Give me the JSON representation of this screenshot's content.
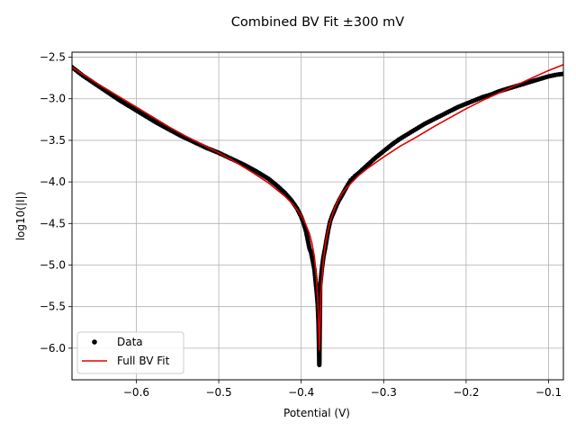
{
  "chart_data": {
    "type": "line",
    "title": "Combined BV Fit ±300 mV",
    "xlabel": "Potential (V)",
    "ylabel": "log10(|I|)",
    "xlim": [
      -0.678,
      -0.082
    ],
    "ylim": [
      -6.38,
      -2.44
    ],
    "xticks": [
      -0.6,
      -0.5,
      -0.4,
      -0.3,
      -0.2,
      -0.1
    ],
    "xtick_labels": [
      "−0.6",
      "−0.5",
      "−0.4",
      "−0.3",
      "−0.2",
      "−0.1"
    ],
    "yticks": [
      -2.5,
      -3.0,
      -3.5,
      -4.0,
      -4.5,
      -5.0,
      -5.5,
      -6.0
    ],
    "ytick_labels": [
      "−2.5",
      "−3.0",
      "−3.5",
      "−4.0",
      "−4.5",
      "−5.0",
      "−5.5",
      "−6.0"
    ],
    "grid": true,
    "legend_position": "lower-left",
    "series": [
      {
        "name": "Data",
        "style": "markers",
        "color": "#000000",
        "x": [
          -0.678,
          -0.665,
          -0.65,
          -0.635,
          -0.62,
          -0.605,
          -0.59,
          -0.575,
          -0.56,
          -0.545,
          -0.53,
          -0.515,
          -0.5,
          -0.485,
          -0.47,
          -0.455,
          -0.44,
          -0.43,
          -0.42,
          -0.412,
          -0.405,
          -0.4,
          -0.397,
          -0.394,
          -0.392,
          -0.39,
          -0.388,
          -0.386,
          -0.384,
          -0.383,
          -0.381,
          -0.38,
          -0.379,
          -0.378,
          -0.377,
          -0.375,
          -0.373,
          -0.371,
          -0.369,
          -0.367,
          -0.365,
          -0.363,
          -0.36,
          -0.357,
          -0.354,
          -0.35,
          -0.345,
          -0.34,
          -0.335,
          -0.33,
          -0.32,
          -0.31,
          -0.3,
          -0.29,
          -0.28,
          -0.27,
          -0.26,
          -0.25,
          -0.24,
          -0.23,
          -0.22,
          -0.21,
          -0.2,
          -0.19,
          -0.18,
          -0.17,
          -0.16,
          -0.15,
          -0.14,
          -0.13,
          -0.12,
          -0.11,
          -0.1,
          -0.09,
          -0.082
        ],
        "y": [
          -2.62,
          -2.72,
          -2.82,
          -2.92,
          -3.02,
          -3.11,
          -3.2,
          -3.29,
          -3.37,
          -3.45,
          -3.52,
          -3.59,
          -3.65,
          -3.72,
          -3.79,
          -3.87,
          -3.96,
          -4.04,
          -4.13,
          -4.22,
          -4.32,
          -4.42,
          -4.5,
          -4.6,
          -4.7,
          -4.8,
          -4.85,
          -4.95,
          -5.05,
          -5.15,
          -5.35,
          -5.47,
          -5.7,
          -6.2,
          -5.25,
          -5.05,
          -4.9,
          -4.8,
          -4.68,
          -4.57,
          -4.48,
          -4.42,
          -4.35,
          -4.28,
          -4.22,
          -4.15,
          -4.06,
          -3.98,
          -3.93,
          -3.89,
          -3.8,
          -3.71,
          -3.63,
          -3.55,
          -3.48,
          -3.42,
          -3.36,
          -3.3,
          -3.25,
          -3.2,
          -3.15,
          -3.1,
          -3.06,
          -3.02,
          -2.98,
          -2.95,
          -2.91,
          -2.88,
          -2.85,
          -2.82,
          -2.79,
          -2.76,
          -2.73,
          -2.71,
          -2.7
        ]
      },
      {
        "name": "Full BV Fit",
        "style": "line",
        "color": "#e00000",
        "x": [
          -0.678,
          -0.65,
          -0.62,
          -0.6,
          -0.58,
          -0.56,
          -0.54,
          -0.52,
          -0.5,
          -0.48,
          -0.46,
          -0.44,
          -0.42,
          -0.41,
          -0.4,
          -0.395,
          -0.39,
          -0.387,
          -0.384,
          -0.382,
          -0.38,
          -0.379,
          -0.378,
          -0.377,
          -0.376,
          -0.374,
          -0.372,
          -0.37,
          -0.367,
          -0.364,
          -0.36,
          -0.355,
          -0.35,
          -0.34,
          -0.33,
          -0.32,
          -0.3,
          -0.28,
          -0.26,
          -0.24,
          -0.22,
          -0.2,
          -0.18,
          -0.16,
          -0.14,
          -0.12,
          -0.1,
          -0.082
        ],
        "y": [
          -2.62,
          -2.8,
          -2.98,
          -3.1,
          -3.22,
          -3.34,
          -3.45,
          -3.55,
          -3.65,
          -3.76,
          -3.88,
          -4.01,
          -4.17,
          -4.27,
          -4.4,
          -4.5,
          -4.62,
          -4.74,
          -4.9,
          -5.1,
          -5.4,
          -5.65,
          -6.02,
          -5.65,
          -5.35,
          -5.05,
          -4.85,
          -4.7,
          -4.56,
          -4.45,
          -4.33,
          -4.22,
          -4.13,
          -4.02,
          -3.92,
          -3.84,
          -3.7,
          -3.57,
          -3.46,
          -3.34,
          -3.23,
          -3.12,
          -3.02,
          -2.93,
          -2.84,
          -2.75,
          -2.66,
          -2.59
        ]
      }
    ]
  }
}
